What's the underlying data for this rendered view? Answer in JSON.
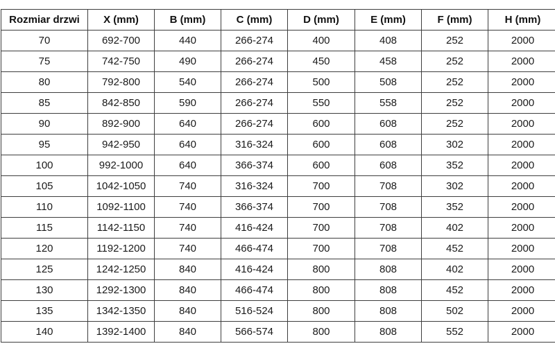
{
  "colors": {
    "background": "#ffffff",
    "border": "#3d3d3d",
    "text": "#1a1a1a"
  },
  "chart_data": {
    "type": "table",
    "columns": [
      "Rozmiar drzwi",
      "X (mm)",
      "B (mm)",
      "C (mm)",
      "D (mm)",
      "E (mm)",
      "F (mm)",
      "H (mm)"
    ],
    "rows": [
      [
        "70",
        "692-700",
        "440",
        "266-274",
        "400",
        "408",
        "252",
        "2000"
      ],
      [
        "75",
        "742-750",
        "490",
        "266-274",
        "450",
        "458",
        "252",
        "2000"
      ],
      [
        "80",
        "792-800",
        "540",
        "266-274",
        "500",
        "508",
        "252",
        "2000"
      ],
      [
        "85",
        "842-850",
        "590",
        "266-274",
        "550",
        "558",
        "252",
        "2000"
      ],
      [
        "90",
        "892-900",
        "640",
        "266-274",
        "600",
        "608",
        "252",
        "2000"
      ],
      [
        "95",
        "942-950",
        "640",
        "316-324",
        "600",
        "608",
        "302",
        "2000"
      ],
      [
        "100",
        "992-1000",
        "640",
        "366-374",
        "600",
        "608",
        "352",
        "2000"
      ],
      [
        "105",
        "1042-1050",
        "740",
        "316-324",
        "700",
        "708",
        "302",
        "2000"
      ],
      [
        "110",
        "1092-1100",
        "740",
        "366-374",
        "700",
        "708",
        "352",
        "2000"
      ],
      [
        "115",
        "1142-1150",
        "740",
        "416-424",
        "700",
        "708",
        "402",
        "2000"
      ],
      [
        "120",
        "1192-1200",
        "740",
        "466-474",
        "700",
        "708",
        "452",
        "2000"
      ],
      [
        "125",
        "1242-1250",
        "840",
        "416-424",
        "800",
        "808",
        "402",
        "2000"
      ],
      [
        "130",
        "1292-1300",
        "840",
        "466-474",
        "800",
        "808",
        "452",
        "2000"
      ],
      [
        "135",
        "1342-1350",
        "840",
        "516-524",
        "800",
        "808",
        "502",
        "2000"
      ],
      [
        "140",
        "1392-1400",
        "840",
        "566-574",
        "800",
        "808",
        "552",
        "2000"
      ]
    ]
  }
}
